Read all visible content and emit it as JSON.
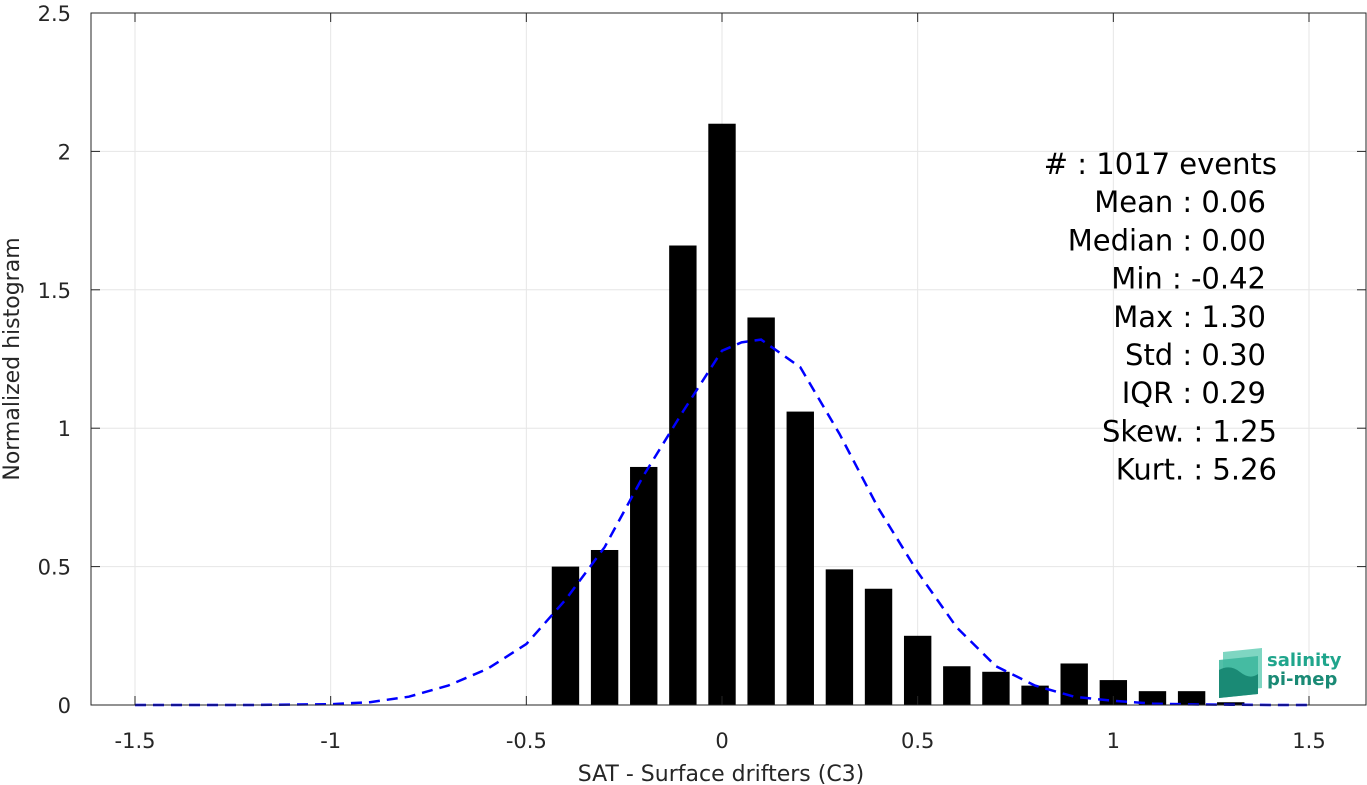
{
  "chart_data": {
    "type": "bar",
    "xlabel": "SAT - Surface drifters (C3)",
    "ylabel": "Normalized histogram",
    "xlim": [
      -1.5,
      1.5
    ],
    "ylim": [
      0,
      2.5
    ],
    "x_ticks": [
      -1.5,
      -1,
      -0.5,
      0,
      0.5,
      1,
      1.5
    ],
    "x_tick_labels": [
      "-1.5",
      "-1",
      "-0.5",
      "0",
      "0.5",
      "1",
      "1.5"
    ],
    "y_ticks": [
      0,
      0.5,
      1,
      1.5,
      2,
      2.5
    ],
    "y_tick_labels": [
      "0",
      "0.5",
      "1",
      "1.5",
      "2",
      "2.5"
    ],
    "grid": true,
    "bar_color": "#000000",
    "bars": {
      "centers": [
        -0.4,
        -0.3,
        -0.2,
        -0.1,
        0.0,
        0.1,
        0.2,
        0.3,
        0.4,
        0.5,
        0.6,
        0.7,
        0.8,
        0.9,
        1.0,
        1.1,
        1.2,
        1.3
      ],
      "width": 0.07,
      "values": [
        0.5,
        0.56,
        0.86,
        1.66,
        2.1,
        1.4,
        1.06,
        0.49,
        0.42,
        0.25,
        0.14,
        0.12,
        0.07,
        0.15,
        0.09,
        0.05,
        0.05,
        0.01
      ]
    },
    "fit_curve": {
      "style": "dashed",
      "color": "#0000ff",
      "x": [
        -1.5,
        -1.2,
        -1.0,
        -0.9,
        -0.8,
        -0.7,
        -0.6,
        -0.5,
        -0.4,
        -0.3,
        -0.2,
        -0.1,
        0.0,
        0.05,
        0.1,
        0.2,
        0.3,
        0.4,
        0.5,
        0.6,
        0.7,
        0.8,
        0.9,
        1.0,
        1.1,
        1.2,
        1.3,
        1.4,
        1.5
      ],
      "y": [
        0.0,
        0.0,
        0.003,
        0.01,
        0.03,
        0.07,
        0.13,
        0.22,
        0.38,
        0.57,
        0.83,
        1.06,
        1.28,
        1.31,
        1.32,
        1.22,
        0.98,
        0.71,
        0.48,
        0.28,
        0.14,
        0.07,
        0.03,
        0.015,
        0.005,
        0.002,
        0.001,
        0.0,
        0.0
      ]
    },
    "stats": [
      "#  : 1017 events",
      "Mean : 0.06",
      "Median : 0.00",
      "Min : -0.42",
      "Max : 1.30",
      "Std : 0.30",
      "IQR : 0.29",
      "Skew. : 1.25",
      "Kurt. : 5.26"
    ]
  },
  "logo": {
    "line1": "salinity",
    "line2": "pi-mep",
    "color1": "#1fa58c",
    "color2": "#1a8a75"
  }
}
